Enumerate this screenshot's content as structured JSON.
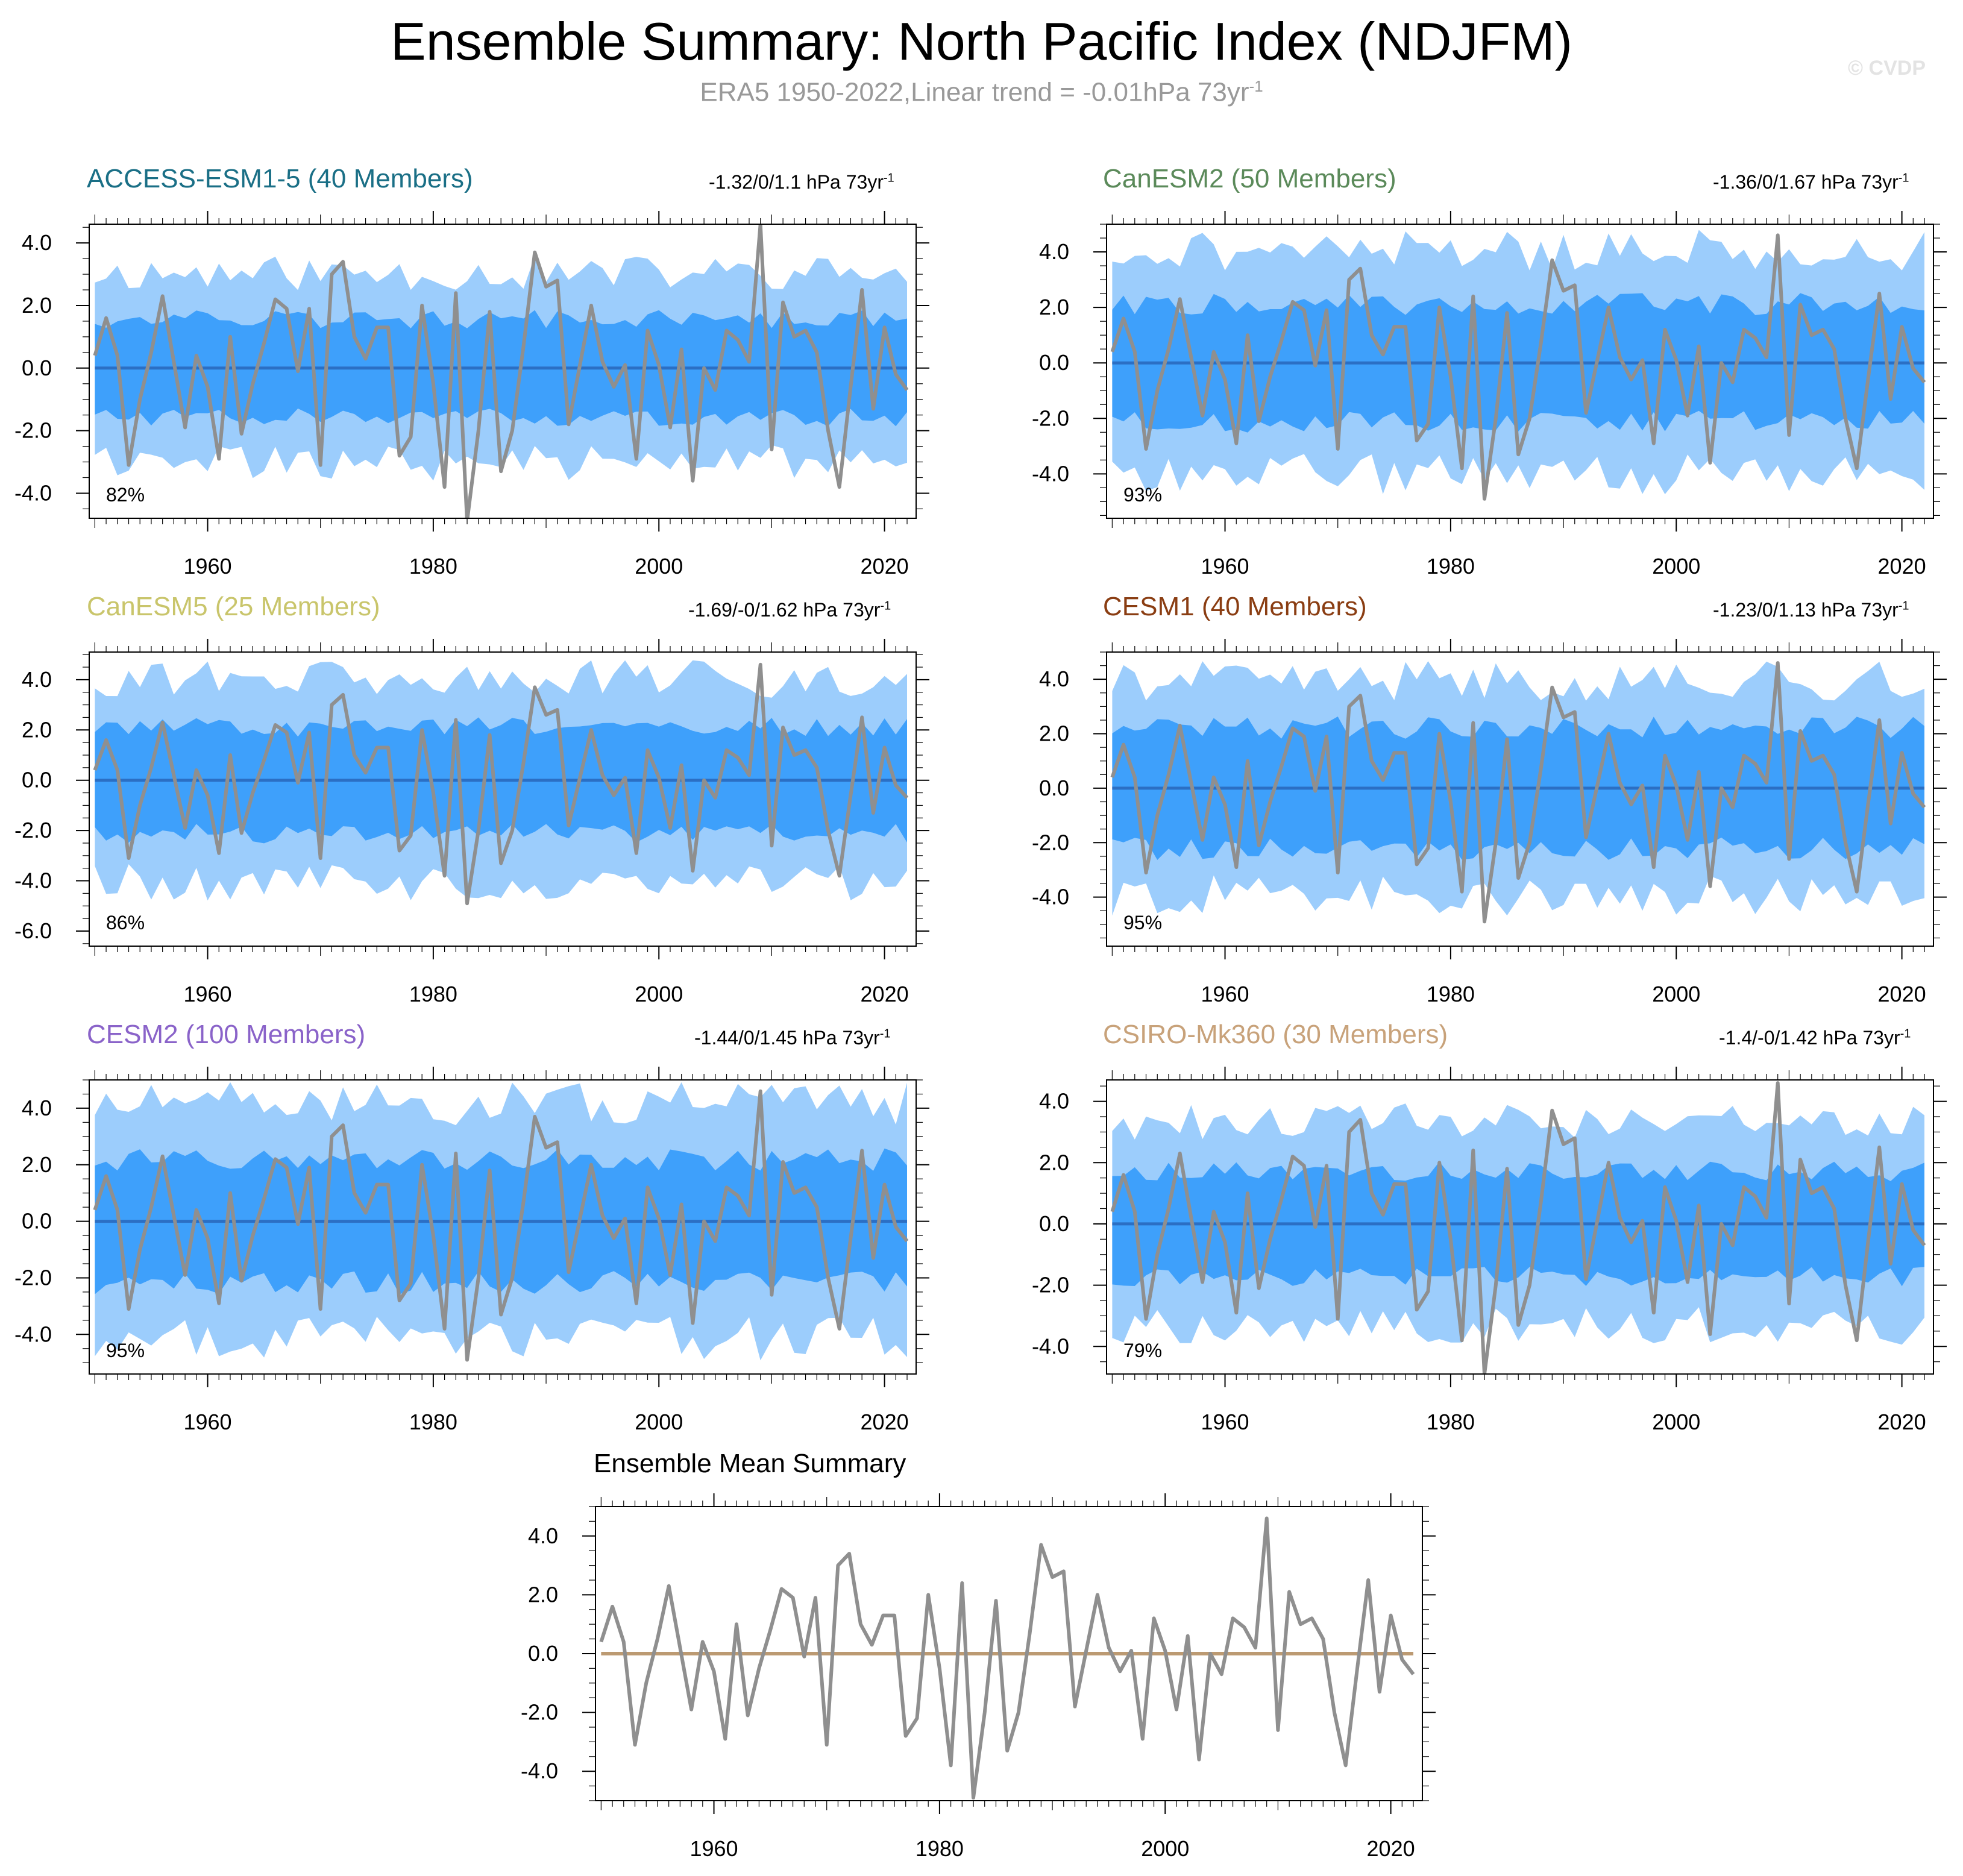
{
  "page": {
    "title": "Ensemble Summary: North Pacific Index (NDJFM)",
    "subtitle_text": "ERA5 1950-2022,Linear trend = -0.01hPa 73yr",
    "subtitle_sup": "-1",
    "watermark": "© CVDP"
  },
  "colors": {
    "outer_band": "#9ccdfc",
    "inner_band": "#3ea0fb",
    "ensemble_mean_line": "#2b6fc4",
    "observed_line": "#8f8f8f",
    "summary_mean_line": "#bc9a72"
  },
  "chart_data": [
    {
      "type": "area",
      "title": "ACCESS-ESM1-5 (40 Members)",
      "title_color": "#1a6f86",
      "trend_text": "-1.32/0/1.1 hPa 73yr",
      "trend_sup": "-1",
      "percent_label": "82%",
      "ylim": [
        -4.8,
        4.6
      ],
      "yticks": [
        4.0,
        2.0,
        0.0,
        -2.0,
        -4.0
      ],
      "ytick_labels": [
        "4.0",
        "2.0",
        "0.0",
        "-2.0",
        "-4.0"
      ],
      "outer_amp": 3.0,
      "outer_seed": 11,
      "inner_amp": 1.55,
      "inner_seed": 12
    },
    {
      "type": "area",
      "title": "CanESM2 (50 Members)",
      "title_color": "#5b8a5a",
      "trend_text": "-1.36/0/1.67 hPa 73yr",
      "trend_sup": "-1",
      "percent_label": "93%",
      "ylim": [
        -5.6,
        5.0
      ],
      "yticks": [
        4.0,
        2.0,
        0.0,
        -2.0,
        -4.0
      ],
      "ytick_labels": [
        "4.0",
        "2.0",
        "0.0",
        "-2.0",
        "-4.0"
      ],
      "outer_amp": 4.0,
      "outer_seed": 21,
      "inner_amp": 2.1,
      "inner_seed": 22
    },
    {
      "type": "area",
      "title": "CanESM5 (25 Members)",
      "title_color": "#c9c56b",
      "trend_text": "-1.69/-0/1.62 hPa 73yr",
      "trend_sup": "-1",
      "percent_label": "86%",
      "ylim": [
        -6.6,
        5.1
      ],
      "yticks": [
        4.0,
        2.0,
        0.0,
        -2.0,
        -4.0,
        -6.0
      ],
      "ytick_labels": [
        "4.0",
        "2.0",
        "0.0",
        "-2.0",
        "-4.0",
        "-6.0"
      ],
      "outer_amp": 4.0,
      "outer_seed": 31,
      "inner_amp": 2.1,
      "inner_seed": 32
    },
    {
      "type": "area",
      "title": "CESM1 (40 Members)",
      "title_color": "#8a3d12",
      "trend_text": "-1.23/0/1.13 hPa 73yr",
      "trend_sup": "-1",
      "percent_label": "95%",
      "ylim": [
        -5.8,
        5.0
      ],
      "yticks": [
        4.0,
        2.0,
        0.0,
        -2.0,
        -4.0
      ],
      "ytick_labels": [
        "4.0",
        "2.0",
        "0.0",
        "-2.0",
        "-4.0"
      ],
      "outer_amp": 3.9,
      "outer_seed": 41,
      "inner_amp": 2.2,
      "inner_seed": 42
    },
    {
      "type": "area",
      "title": "CESM2 (100 Members)",
      "title_color": "#8a63c9",
      "trend_text": "-1.44/0/1.45 hPa 73yr",
      "trend_sup": "-1",
      "percent_label": "95%",
      "ylim": [
        -5.4,
        5.0
      ],
      "yticks": [
        4.0,
        2.0,
        0.0,
        -2.0,
        -4.0
      ],
      "ytick_labels": [
        "4.0",
        "2.0",
        "0.0",
        "-2.0",
        "-4.0"
      ],
      "outer_amp": 4.1,
      "outer_seed": 51,
      "inner_amp": 2.15,
      "inner_seed": 52
    },
    {
      "type": "area",
      "title": "CSIRO-Mk360 (30 Members)",
      "title_color": "#c8a27a",
      "trend_text": "-1.4/-0/1.42 hPa 73yr",
      "trend_sup": "-1",
      "percent_label": "79%",
      "ylim": [
        -4.9,
        4.7
      ],
      "yticks": [
        4.0,
        2.0,
        0.0,
        -2.0,
        -4.0
      ],
      "ytick_labels": [
        "4.0",
        "2.0",
        "0.0",
        "-2.0",
        "-4.0"
      ],
      "outer_amp": 3.3,
      "outer_seed": 61,
      "inner_amp": 1.7,
      "inner_seed": 62
    },
    {
      "type": "line",
      "title": "Ensemble Mean Summary",
      "title_color": "#000000",
      "ylim": [
        -5.0,
        5.0
      ],
      "yticks": [
        4.0,
        2.0,
        0.0,
        -2.0,
        -4.0
      ],
      "ytick_labels": [
        "4.0",
        "2.0",
        "0.0",
        "-2.0",
        "-4.0"
      ]
    }
  ],
  "shared_axes": {
    "xlim": [
      1949.5,
      2022.8
    ],
    "xticks": [
      1960,
      1980,
      2000,
      2020
    ],
    "xtick_labels": [
      "1960",
      "1980",
      "2000",
      "2020"
    ],
    "years_start": 1950,
    "observed_npi_era5": [
      0.4,
      1.6,
      0.4,
      -3.1,
      -1.0,
      0.5,
      2.3,
      0.2,
      -1.9,
      0.4,
      -0.6,
      -2.9,
      1.0,
      -2.1,
      -0.5,
      0.8,
      2.2,
      1.9,
      -0.1,
      1.9,
      -3.1,
      3.0,
      3.4,
      1.0,
      0.3,
      1.3,
      1.3,
      -2.8,
      -2.2,
      2.0,
      -0.5,
      -3.8,
      2.4,
      -4.9,
      -2.0,
      1.8,
      -3.3,
      -2.0,
      0.7,
      3.7,
      2.6,
      2.8,
      -1.8,
      0.1,
      2.0,
      0.2,
      -0.6,
      0.1,
      -2.9,
      1.2,
      0.1,
      -1.9,
      0.6,
      -3.6,
      0.0,
      -0.7,
      1.2,
      0.9,
      0.2,
      4.6,
      -2.6,
      2.1,
      1.0,
      1.2,
      0.5,
      -2.0,
      -3.8,
      -0.6,
      2.5,
      -1.3,
      1.3,
      -0.2,
      -0.7
    ]
  }
}
